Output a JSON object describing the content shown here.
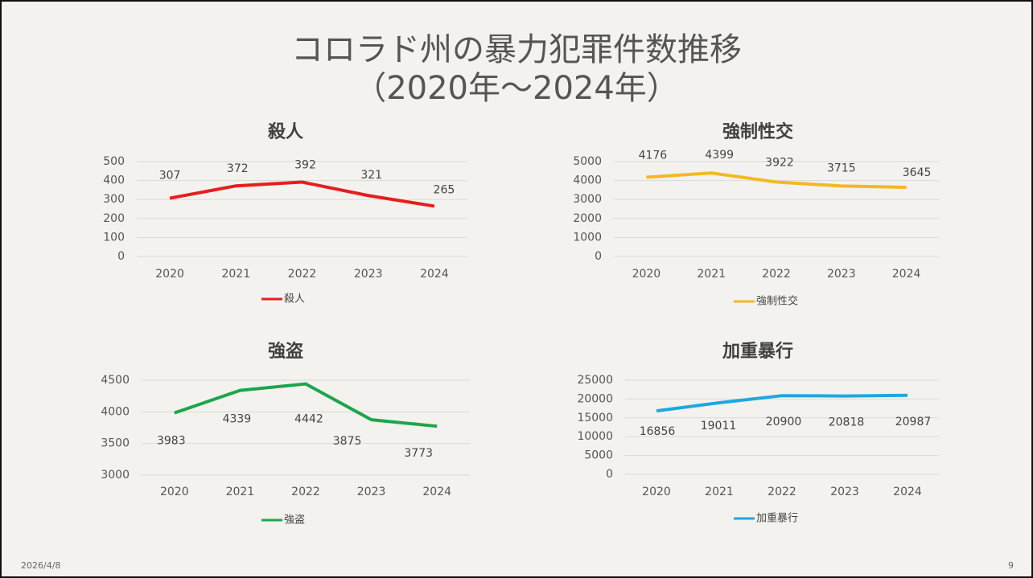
{
  "slide": {
    "title_lines": [
      "コロラド州の暴力犯罪件数推移",
      "（2020年～2024年）"
    ],
    "date": "2026/4/8",
    "page": "9"
  },
  "chart_data": [
    {
      "type": "line",
      "title": "殺人",
      "categories": [
        "2020",
        "2021",
        "2022",
        "2023",
        "2024"
      ],
      "series": [
        {
          "name": "殺人",
          "color": "#e61e1e",
          "values": [
            307,
            372,
            392,
            321,
            265
          ]
        }
      ],
      "ylim": [
        0,
        500
      ],
      "yticks": [
        0,
        100,
        200,
        300,
        400,
        500
      ],
      "grid": true,
      "legend": "bottom"
    },
    {
      "type": "line",
      "title": "強制性交",
      "categories": [
        "2020",
        "2021",
        "2022",
        "2023",
        "2024"
      ],
      "series": [
        {
          "name": "強制性交",
          "color": "#f4b824",
          "values": [
            4176,
            4399,
            3922,
            3715,
            3645
          ]
        }
      ],
      "ylim": [
        0,
        5000
      ],
      "yticks": [
        0,
        1000,
        2000,
        3000,
        4000,
        5000
      ],
      "grid": true,
      "legend": "bottom"
    },
    {
      "type": "line",
      "title": "強盗",
      "categories": [
        "2020",
        "2021",
        "2022",
        "2023",
        "2024"
      ],
      "series": [
        {
          "name": "強盗",
          "color": "#1ba64b",
          "values": [
            3983,
            4339,
            4442,
            3875,
            3773
          ]
        }
      ],
      "ylim": [
        3000,
        4500
      ],
      "yticks": [
        3000,
        3500,
        4000,
        4500
      ],
      "grid": true,
      "legend": "bottom"
    },
    {
      "type": "line",
      "title": "加重暴行",
      "categories": [
        "2020",
        "2021",
        "2022",
        "2023",
        "2024"
      ],
      "series": [
        {
          "name": "加重暴行",
          "color": "#1fa7e0",
          "values": [
            16856,
            19011,
            20900,
            20818,
            20987
          ]
        }
      ],
      "ylim": [
        0,
        25000
      ],
      "yticks": [
        0,
        5000,
        10000,
        15000,
        20000,
        25000
      ],
      "grid": true,
      "legend": "bottom"
    }
  ]
}
